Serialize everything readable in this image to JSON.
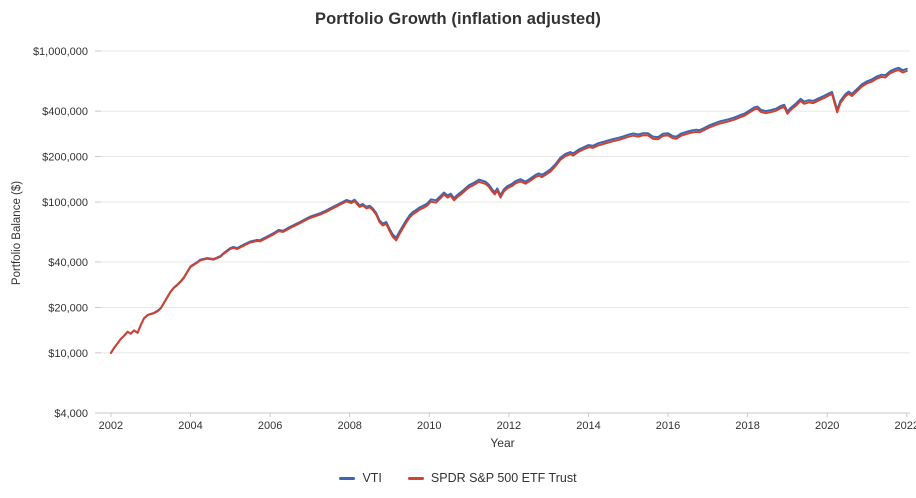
{
  "chart": {
    "title": "Portfolio Growth (inflation adjusted)",
    "x_axis_label": "Year",
    "y_axis_label": "Portfolio Balance ($)",
    "legend": [
      {
        "label": "VTI",
        "color": "#3c66b0"
      },
      {
        "label": "SPDR S&P 500 ETF Trust",
        "color": "#d2402e"
      }
    ]
  },
  "chart_data": {
    "type": "line",
    "title": "Portfolio Growth (inflation adjusted)",
    "xlabel": "Year",
    "ylabel": "Portfolio Balance ($)",
    "x_scale": "linear",
    "y_scale": "log",
    "xlim": [
      2001.6,
      2022.08
    ],
    "ylim": [
      4000,
      1000000
    ],
    "grid": "horizontal",
    "legend_position": "bottom",
    "grid_color": "#e7e7e7",
    "axis_color": "#c9c9c9",
    "x_ticks": [
      2002,
      2004,
      2006,
      2008,
      2010,
      2012,
      2014,
      2016,
      2018,
      2020,
      2022
    ],
    "y_ticks": [
      {
        "value": 1000000,
        "label": "$1,000,000"
      },
      {
        "value": 400000,
        "label": "$400,000"
      },
      {
        "value": 200000,
        "label": "$200,000"
      },
      {
        "value": 100000,
        "label": "$100,000"
      },
      {
        "value": 40000,
        "label": "$40,000"
      },
      {
        "value": 20000,
        "label": "$20,000"
      },
      {
        "value": 10000,
        "label": "$10,000"
      },
      {
        "value": 4000,
        "label": "$4,000"
      }
    ],
    "series": [
      {
        "name": "VTI",
        "color": "#3c66b0"
      },
      {
        "name": "SPDR S&P 500 ETF Trust",
        "color": "#d2402e"
      }
    ],
    "points_format": [
      "year",
      "VTI",
      "SPDR S&P 500 ETF Trust"
    ],
    "points": [
      [
        2002.0,
        10000,
        10000
      ],
      [
        2002.08,
        10800,
        10800
      ],
      [
        2002.17,
        11600,
        11600
      ],
      [
        2002.25,
        12400,
        12400
      ],
      [
        2002.33,
        13000,
        13000
      ],
      [
        2002.42,
        13800,
        13800
      ],
      [
        2002.5,
        13400,
        13400
      ],
      [
        2002.58,
        14100,
        14100
      ],
      [
        2002.67,
        13600,
        13600
      ],
      [
        2002.75,
        15300,
        15300
      ],
      [
        2002.83,
        16900,
        16900
      ],
      [
        2002.92,
        17800,
        17800
      ],
      [
        2003.0,
        18100,
        18100
      ],
      [
        2003.08,
        18400,
        18300
      ],
      [
        2003.17,
        19000,
        18900
      ],
      [
        2003.25,
        19800,
        19700
      ],
      [
        2003.33,
        21400,
        21300
      ],
      [
        2003.42,
        23500,
        23400
      ],
      [
        2003.5,
        25500,
        25400
      ],
      [
        2003.58,
        27100,
        26900
      ],
      [
        2003.67,
        28400,
        28200
      ],
      [
        2003.75,
        29800,
        29600
      ],
      [
        2003.83,
        31500,
        31300
      ],
      [
        2003.92,
        34500,
        34300
      ],
      [
        2004.0,
        37400,
        37100
      ],
      [
        2004.17,
        40000,
        39700
      ],
      [
        2004.25,
        41500,
        41100
      ],
      [
        2004.42,
        42500,
        42100
      ],
      [
        2004.58,
        41900,
        41500
      ],
      [
        2004.75,
        43800,
        43300
      ],
      [
        2004.83,
        45800,
        45300
      ],
      [
        2005.0,
        49500,
        48800
      ],
      [
        2005.08,
        50300,
        49600
      ],
      [
        2005.17,
        49500,
        48800
      ],
      [
        2005.33,
        52000,
        51200
      ],
      [
        2005.5,
        54700,
        53900
      ],
      [
        2005.67,
        56000,
        55100
      ],
      [
        2005.75,
        55800,
        54900
      ],
      [
        2005.92,
        58900,
        57900
      ],
      [
        2006.08,
        62000,
        60900
      ],
      [
        2006.21,
        65200,
        64000
      ],
      [
        2006.33,
        64500,
        63300
      ],
      [
        2006.5,
        68400,
        67100
      ],
      [
        2006.75,
        73700,
        72300
      ],
      [
        2007.0,
        79900,
        78300
      ],
      [
        2007.25,
        84100,
        82400
      ],
      [
        2007.42,
        88000,
        86200
      ],
      [
        2007.5,
        90500,
        88600
      ],
      [
        2007.67,
        95300,
        93300
      ],
      [
        2007.79,
        99000,
        96900
      ],
      [
        2007.92,
        103000,
        100800
      ],
      [
        2008.04,
        100500,
        98300
      ],
      [
        2008.12,
        103500,
        101200
      ],
      [
        2008.25,
        95000,
        92800
      ],
      [
        2008.33,
        97000,
        94800
      ],
      [
        2008.42,
        92800,
        90600
      ],
      [
        2008.5,
        94500,
        92200
      ],
      [
        2008.58,
        90500,
        88300
      ],
      [
        2008.67,
        84000,
        81900
      ],
      [
        2008.75,
        75600,
        73500
      ],
      [
        2008.83,
        71900,
        69800
      ],
      [
        2008.92,
        73500,
        71400
      ],
      [
        2009.0,
        66500,
        64400
      ],
      [
        2009.08,
        61000,
        58800
      ],
      [
        2009.17,
        58000,
        55600
      ],
      [
        2009.25,
        63500,
        61100
      ],
      [
        2009.33,
        69000,
        66500
      ],
      [
        2009.42,
        75600,
        73000
      ],
      [
        2009.5,
        81300,
        78600
      ],
      [
        2009.58,
        85500,
        82700
      ],
      [
        2009.67,
        88500,
        85600
      ],
      [
        2009.75,
        91700,
        88700
      ],
      [
        2009.87,
        95000,
        91900
      ],
      [
        2009.95,
        98000,
        94800
      ],
      [
        2010.04,
        104000,
        100600
      ],
      [
        2010.17,
        102500,
        99100
      ],
      [
        2010.29,
        110000,
        106400
      ],
      [
        2010.37,
        115600,
        111800
      ],
      [
        2010.46,
        110500,
        106900
      ],
      [
        2010.54,
        113500,
        109800
      ],
      [
        2010.62,
        106000,
        102500
      ],
      [
        2010.71,
        111500,
        107900
      ],
      [
        2010.83,
        118000,
        114100
      ],
      [
        2010.92,
        124000,
        120000
      ],
      [
        2011.0,
        129300,
        125100
      ],
      [
        2011.12,
        134000,
        129600
      ],
      [
        2011.25,
        140600,
        136000
      ],
      [
        2011.33,
        138500,
        134000
      ],
      [
        2011.42,
        136000,
        131600
      ],
      [
        2011.5,
        130000,
        125800
      ],
      [
        2011.58,
        121000,
        117100
      ],
      [
        2011.65,
        116000,
        112200
      ],
      [
        2011.71,
        123000,
        119000
      ],
      [
        2011.79,
        110500,
        106900
      ],
      [
        2011.87,
        121000,
        117100
      ],
      [
        2011.96,
        127000,
        122900
      ],
      [
        2012.08,
        132000,
        127700
      ],
      [
        2012.17,
        137500,
        133000
      ],
      [
        2012.29,
        141500,
        136900
      ],
      [
        2012.42,
        136500,
        132100
      ],
      [
        2012.54,
        143000,
        138400
      ],
      [
        2012.67,
        151000,
        146100
      ],
      [
        2012.75,
        154500,
        149500
      ],
      [
        2012.83,
        151000,
        146100
      ],
      [
        2012.95,
        158000,
        152900
      ],
      [
        2013.04,
        164000,
        158700
      ],
      [
        2013.17,
        178000,
        172200
      ],
      [
        2013.29,
        196000,
        189700
      ],
      [
        2013.42,
        208000,
        201300
      ],
      [
        2013.54,
        214000,
        207100
      ],
      [
        2013.62,
        210000,
        203200
      ],
      [
        2013.75,
        222000,
        214800
      ],
      [
        2013.87,
        230000,
        222600
      ],
      [
        2014.0,
        238000,
        230300
      ],
      [
        2014.12,
        236000,
        228400
      ],
      [
        2014.25,
        245000,
        237100
      ],
      [
        2014.37,
        250000,
        241900
      ],
      [
        2014.5,
        256000,
        247700
      ],
      [
        2014.62,
        261000,
        252600
      ],
      [
        2014.75,
        266000,
        257400
      ],
      [
        2014.87,
        272000,
        263200
      ],
      [
        2015.0,
        279000,
        270000
      ],
      [
        2015.12,
        284000,
        274800
      ],
      [
        2015.25,
        280000,
        270900
      ],
      [
        2015.37,
        285500,
        276300
      ],
      [
        2015.5,
        285000,
        275800
      ],
      [
        2015.62,
        271000,
        262200
      ],
      [
        2015.75,
        269000,
        260300
      ],
      [
        2015.87,
        283000,
        273800
      ],
      [
        2016.0,
        285000,
        275800
      ],
      [
        2016.12,
        273000,
        264100
      ],
      [
        2016.21,
        271000,
        262200
      ],
      [
        2016.33,
        284000,
        274800
      ],
      [
        2016.46,
        291000,
        281600
      ],
      [
        2016.58,
        297000,
        287400
      ],
      [
        2016.71,
        301000,
        291300
      ],
      [
        2016.79,
        299000,
        289300
      ],
      [
        2016.92,
        310000,
        300000
      ],
      [
        2017.04,
        322000,
        311600
      ],
      [
        2017.17,
        332000,
        321300
      ],
      [
        2017.29,
        341000,
        330000
      ],
      [
        2017.42,
        348000,
        336700
      ],
      [
        2017.54,
        354000,
        342600
      ],
      [
        2017.67,
        363000,
        351300
      ],
      [
        2017.79,
        374000,
        362000
      ],
      [
        2017.92,
        385000,
        372600
      ],
      [
        2018.04,
        403000,
        390000
      ],
      [
        2018.17,
        424000,
        410300
      ],
      [
        2018.25,
        428000,
        414200
      ],
      [
        2018.33,
        408000,
        394800
      ],
      [
        2018.46,
        400000,
        387100
      ],
      [
        2018.58,
        406000,
        392900
      ],
      [
        2018.71,
        415000,
        401600
      ],
      [
        2018.83,
        432000,
        418100
      ],
      [
        2018.92,
        440000,
        425800
      ],
      [
        2019.0,
        397000,
        384100
      ],
      [
        2019.08,
        420000,
        406400
      ],
      [
        2019.21,
        448000,
        433500
      ],
      [
        2019.33,
        482000,
        466500
      ],
      [
        2019.42,
        462000,
        447100
      ],
      [
        2019.54,
        472000,
        456800
      ],
      [
        2019.65,
        467000,
        451900
      ],
      [
        2019.79,
        487000,
        471300
      ],
      [
        2019.92,
        504000,
        487800
      ],
      [
        2020.04,
        524000,
        507100
      ],
      [
        2020.12,
        536000,
        518700
      ],
      [
        2020.25,
        408000,
        392700
      ],
      [
        2020.33,
        468000,
        452000
      ],
      [
        2020.46,
        519000,
        502200
      ],
      [
        2020.54,
        538000,
        520600
      ],
      [
        2020.62,
        520000,
        503200
      ],
      [
        2020.75,
        560000,
        541900
      ],
      [
        2020.87,
        601000,
        581600
      ],
      [
        2021.0,
        630000,
        609700
      ],
      [
        2021.12,
        648000,
        627100
      ],
      [
        2021.25,
        679000,
        657100
      ],
      [
        2021.37,
        697000,
        674500
      ],
      [
        2021.46,
        690000,
        667700
      ],
      [
        2021.58,
        735000,
        711200
      ],
      [
        2021.71,
        762000,
        737400
      ],
      [
        2021.79,
        774000,
        748900
      ],
      [
        2021.9,
        745000,
        720900
      ],
      [
        2022.0,
        762000,
        737400
      ]
    ]
  }
}
